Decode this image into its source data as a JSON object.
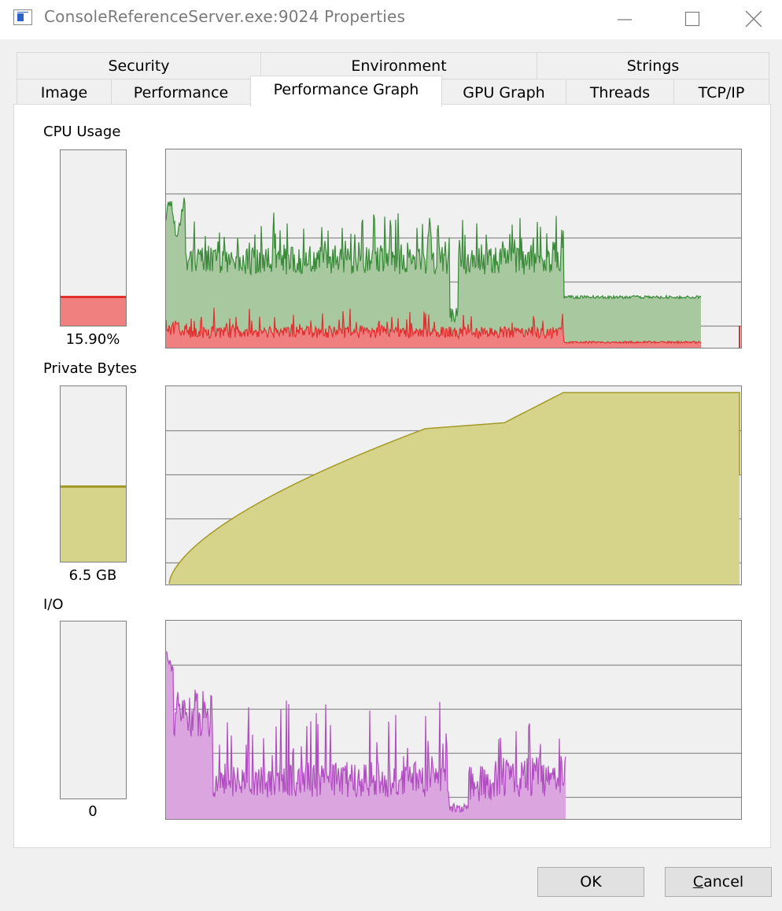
{
  "window": {
    "title": "ConsoleReferenceServer.exe:9024 Properties"
  },
  "tabs": {
    "row1": [
      {
        "label": "Security"
      },
      {
        "label": "Environment"
      },
      {
        "label": "Strings"
      }
    ],
    "row2": [
      {
        "label": "Image"
      },
      {
        "label": "Performance"
      },
      {
        "label": "Performance Graph",
        "active": true
      },
      {
        "label": "GPU Graph"
      },
      {
        "label": "Threads"
      },
      {
        "label": "TCP/IP"
      }
    ]
  },
  "sections": {
    "cpu": {
      "label": "CPU Usage",
      "value": "15.90%",
      "meter_fraction": 0.159,
      "fill_color": "#f08080",
      "line_color": "#e03030"
    },
    "private_bytes": {
      "label": "Private Bytes",
      "value": "6.5 GB",
      "meter_fraction": 0.42,
      "fill_color": "#d6d38a",
      "line_color": "#a39b28"
    },
    "io": {
      "label": "I/O",
      "value": "0",
      "meter_fraction": 0,
      "fill_color": "#dba5df",
      "line_color": "#b04dc0"
    }
  },
  "buttons": {
    "ok": "OK",
    "cancel": "Cancel"
  },
  "colors": {
    "cpu_total_fill": "#a8c9a0",
    "cpu_total_line": "#3a8a3a",
    "cpu_kernel_fill": "#f08080",
    "cpu_kernel_line": "#e03030",
    "memory_fill": "#d6d38a",
    "memory_line": "#a39b28",
    "io_fill": "#dba5df",
    "io_line": "#b04dc0",
    "gridline": "#8c8c8c",
    "graph_bg": "#f0f0f0"
  }
}
